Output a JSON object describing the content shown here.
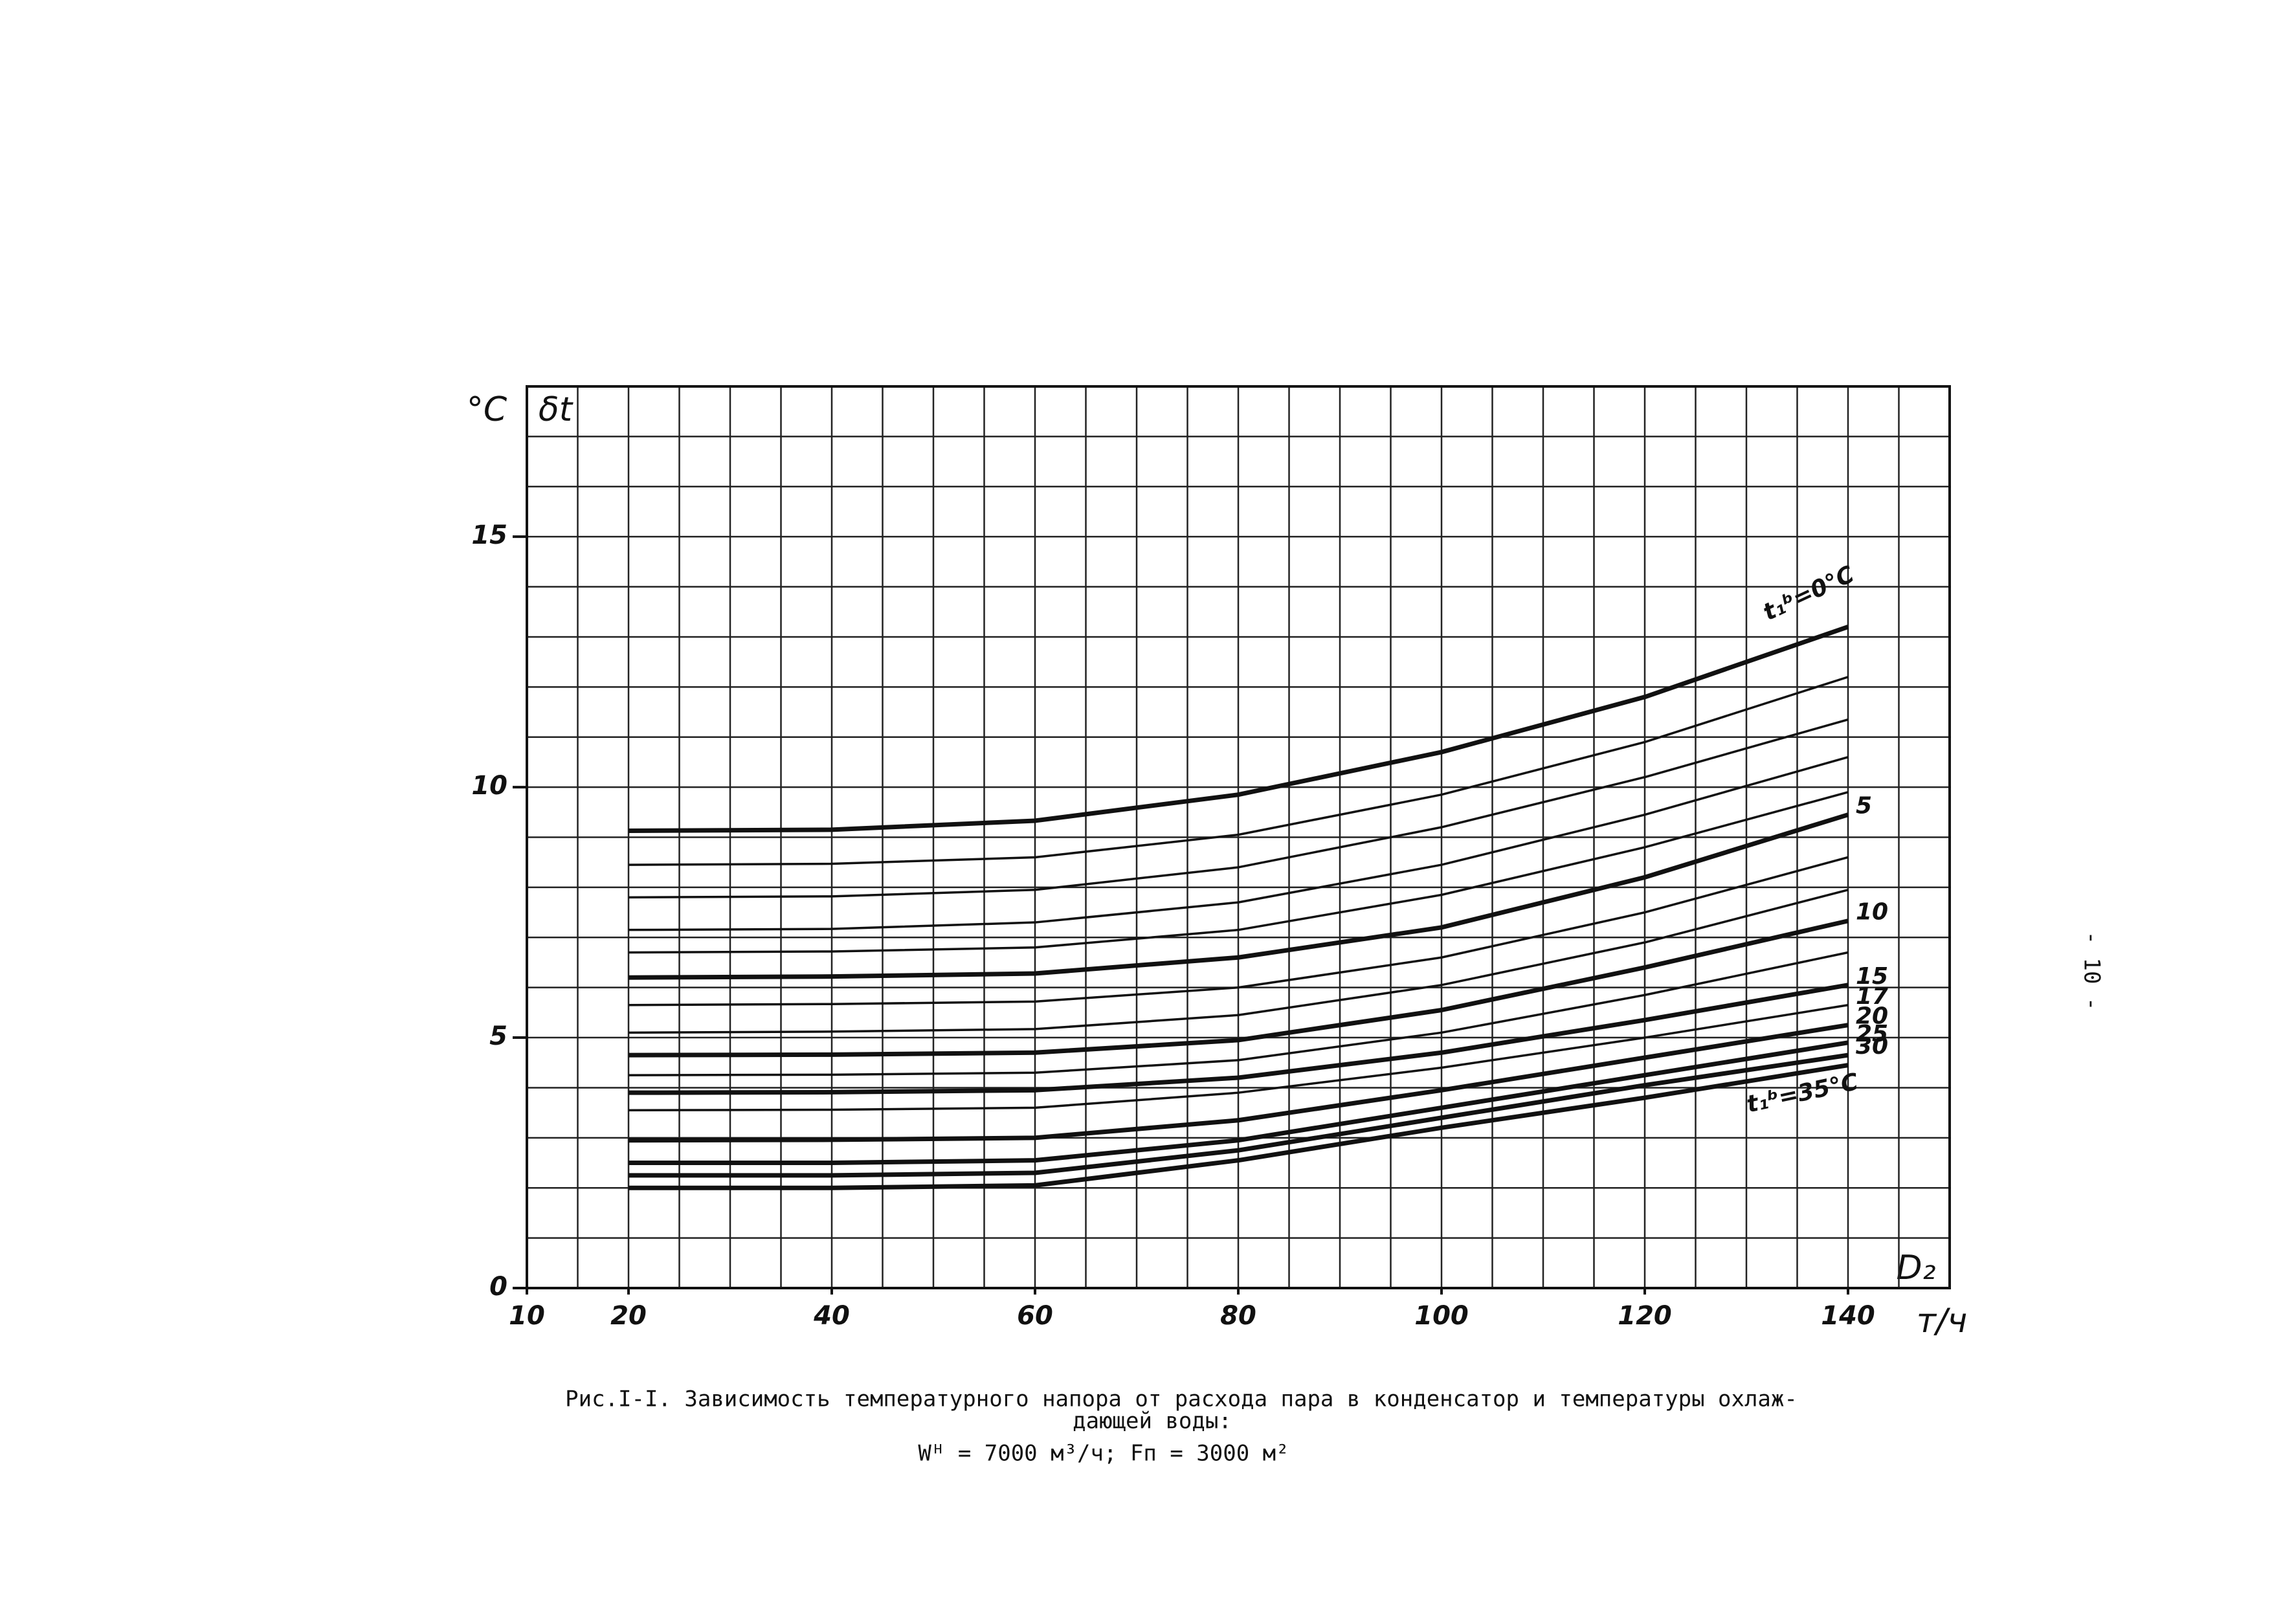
{
  "chart_data": {
    "type": "line",
    "y_unit": "°C",
    "y_label": "δt",
    "x_label": "D₂",
    "x_unit": "т/ч",
    "caption": [
      "Рис.I-I. Зависимость температурного напора от расхода пара в конденсатор и температуры охлаж-",
      "дающей воды:",
      "Wᴴ = 7000 м³/ч;  Fп = 3000 м²"
    ],
    "page_number": "- 10 -",
    "x": [
      20,
      40,
      60,
      80,
      100,
      120,
      140
    ],
    "series": [
      {
        "name": "t₁ᵇ=0°C",
        "thick": true,
        "values": [
          9.13,
          9.15,
          9.33,
          9.85,
          10.7,
          11.8,
          13.2
        ]
      },
      {
        "thick": false,
        "values": [
          8.45,
          8.47,
          8.6,
          9.05,
          9.85,
          10.9,
          12.2
        ]
      },
      {
        "thick": false,
        "values": [
          7.8,
          7.82,
          7.95,
          8.4,
          9.2,
          10.2,
          11.35
        ]
      },
      {
        "thick": false,
        "values": [
          7.15,
          7.17,
          7.3,
          7.7,
          8.45,
          9.45,
          10.6
        ]
      },
      {
        "thick": false,
        "values": [
          6.7,
          6.72,
          6.8,
          7.15,
          7.85,
          8.8,
          9.9
        ]
      },
      {
        "name": "5",
        "thick": true,
        "values": [
          6.2,
          6.22,
          6.28,
          6.6,
          7.2,
          8.2,
          9.45
        ]
      },
      {
        "thick": false,
        "values": [
          5.65,
          5.67,
          5.72,
          6.0,
          6.6,
          7.5,
          8.6
        ]
      },
      {
        "thick": false,
        "values": [
          5.1,
          5.12,
          5.17,
          5.45,
          6.05,
          6.9,
          7.95
        ]
      },
      {
        "name": "10",
        "thick": true,
        "values": [
          4.65,
          4.66,
          4.7,
          4.95,
          5.55,
          6.4,
          7.33
        ]
      },
      {
        "thick": false,
        "values": [
          4.25,
          4.26,
          4.3,
          4.55,
          5.1,
          5.85,
          6.7
        ]
      },
      {
        "name": "15",
        "thick": true,
        "values": [
          3.9,
          3.91,
          3.95,
          4.2,
          4.7,
          5.35,
          6.05
        ]
      },
      {
        "name": "17",
        "thick": false,
        "values": [
          3.55,
          3.56,
          3.6,
          3.9,
          4.4,
          5.0,
          5.65
        ]
      },
      {
        "name": "20",
        "thick": true,
        "values": [
          2.95,
          2.96,
          3.0,
          3.35,
          3.95,
          4.6,
          5.25
        ]
      },
      {
        "name": "25",
        "thick": true,
        "values": [
          2.5,
          2.5,
          2.55,
          2.95,
          3.6,
          4.25,
          4.9
        ]
      },
      {
        "name": "30",
        "thick": true,
        "values": [
          2.25,
          2.25,
          2.3,
          2.75,
          3.4,
          4.05,
          4.65
        ]
      },
      {
        "name": "t₁ᵇ=35°C",
        "thick": true,
        "values": [
          2.0,
          2.0,
          2.05,
          2.55,
          3.2,
          3.8,
          4.45
        ]
      }
    ],
    "color": "#111111",
    "xlim": [
      10,
      150
    ],
    "ylim": [
      0,
      18
    ],
    "xticks": [
      10,
      20,
      40,
      60,
      80,
      100,
      120,
      140
    ],
    "yticks": [
      0,
      5,
      10,
      15
    ],
    "grid": true,
    "x_minor_step": 5,
    "y_minor_step": 1
  }
}
